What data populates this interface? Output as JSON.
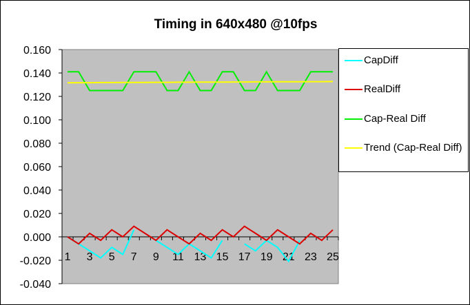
{
  "chart_data": {
    "type": "line",
    "title": "Timing in 640x480 @10fps",
    "xlabel": "",
    "ylabel": "",
    "ylim": [
      -0.04,
      0.16
    ],
    "y_ticks": [
      "0.160",
      "0.140",
      "0.120",
      "0.100",
      "0.080",
      "0.060",
      "0.040",
      "0.020",
      "0.000",
      "-0.020",
      "-0.040"
    ],
    "x": [
      1,
      2,
      3,
      4,
      5,
      6,
      7,
      8,
      9,
      10,
      11,
      12,
      13,
      14,
      15,
      16,
      17,
      18,
      19,
      20,
      21,
      22,
      23,
      24,
      25
    ],
    "x_tick_labels": [
      "1",
      "3",
      "5",
      "7",
      "9",
      "11",
      "13",
      "15",
      "17",
      "19",
      "21",
      "23",
      "25"
    ],
    "x_tick_values": [
      1,
      3,
      5,
      7,
      9,
      11,
      13,
      15,
      17,
      19,
      21,
      23,
      25
    ],
    "series": [
      {
        "name": "CapDiff",
        "color": "#00ffff",
        "values": [
          0,
          -0.006,
          -0.012,
          -0.018,
          -0.009,
          -0.015,
          0.006,
          null,
          -0.003,
          -0.009,
          -0.015,
          -0.006,
          -0.012,
          -0.018,
          -0.003,
          null,
          -0.006,
          -0.012,
          -0.003,
          -0.009,
          -0.021,
          -0.003,
          null,
          null,
          null
        ]
      },
      {
        "name": "RealDiff",
        "color": "#dd0000",
        "values": [
          0,
          -0.006,
          0.003,
          -0.003,
          0.006,
          0,
          0.009,
          0.003,
          -0.003,
          0.006,
          0,
          -0.006,
          0.003,
          -0.003,
          0.006,
          0,
          0.009,
          0.003,
          -0.003,
          0.006,
          0,
          -0.006,
          0.003,
          -0.003,
          0.006
        ]
      },
      {
        "name": "Cap-Real Diff",
        "color": "#00ee00",
        "values": [
          0.141,
          0.141,
          0.125,
          0.125,
          0.125,
          0.125,
          0.141,
          0.141,
          0.141,
          0.125,
          0.125,
          0.141,
          0.125,
          0.125,
          0.141,
          0.141,
          0.125,
          0.125,
          0.141,
          0.125,
          0.125,
          0.125,
          0.141,
          0.141,
          0.141
        ]
      },
      {
        "name": "Trend (Cap-Real Diff)",
        "color": "#ffff00",
        "values": [
          0.1316,
          0.1317,
          0.1317,
          0.1318,
          0.1318,
          0.1319,
          0.1319,
          0.1319,
          0.132,
          0.132,
          0.1321,
          0.1321,
          0.1322,
          0.1322,
          0.1322,
          0.1323,
          0.1323,
          0.1324,
          0.1324,
          0.1325,
          0.1325,
          0.1325,
          0.1326,
          0.1326,
          0.1327
        ]
      }
    ],
    "grid": false,
    "legend_position": "right",
    "plot_background": "#c0c0c0"
  }
}
